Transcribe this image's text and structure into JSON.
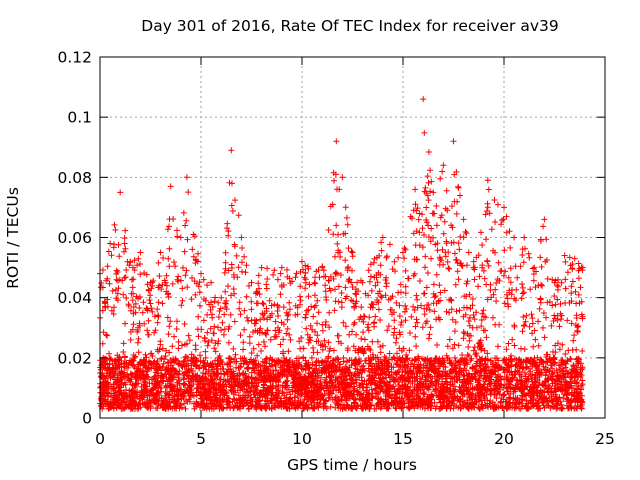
{
  "chart_data": {
    "type": "scatter",
    "title": "Day 301 of 2016, Rate Of TEC Index for receiver av39",
    "xlabel": "GPS time / hours",
    "ylabel": "ROTI / TECUs",
    "xlim": [
      0,
      25
    ],
    "ylim": [
      0,
      0.12
    ],
    "xticks": [
      0,
      5,
      10,
      15,
      20,
      25
    ],
    "yticks": [
      0,
      0.02,
      0.04,
      0.06,
      0.08,
      0.1,
      0.12
    ],
    "xtick_labels": [
      "0",
      "5",
      "10",
      "15",
      "20",
      "25"
    ],
    "ytick_labels": [
      "0",
      "0.02",
      "0.04",
      "0.06",
      "0.08",
      "0.1",
      "0.12"
    ],
    "grid": true,
    "marker": "+",
    "color": "#ff0000",
    "series": [
      {
        "name": "ROTI",
        "x_range": [
          0,
          23.9
        ],
        "baseline_range": [
          0.003,
          0.02
        ],
        "upper_envelope": [
          [
            0.0,
            0.048
          ],
          [
            0.5,
            0.058
          ],
          [
            1.0,
            0.075
          ],
          [
            1.5,
            0.052
          ],
          [
            2.0,
            0.055
          ],
          [
            2.5,
            0.045
          ],
          [
            3.0,
            0.055
          ],
          [
            3.5,
            0.077
          ],
          [
            4.0,
            0.06
          ],
          [
            4.3,
            0.08
          ],
          [
            5.0,
            0.048
          ],
          [
            5.5,
            0.045
          ],
          [
            6.0,
            0.04
          ],
          [
            6.5,
            0.089
          ],
          [
            7.0,
            0.06
          ],
          [
            7.5,
            0.045
          ],
          [
            8.0,
            0.05
          ],
          [
            9.0,
            0.05
          ],
          [
            10.0,
            0.052
          ],
          [
            11.0,
            0.05
          ],
          [
            11.7,
            0.092
          ],
          [
            12.0,
            0.08
          ],
          [
            12.5,
            0.055
          ],
          [
            13.0,
            0.045
          ],
          [
            14.0,
            0.06
          ],
          [
            15.0,
            0.055
          ],
          [
            15.6,
            0.076
          ],
          [
            16.0,
            0.106
          ],
          [
            16.5,
            0.075
          ],
          [
            17.0,
            0.084
          ],
          [
            17.5,
            0.092
          ],
          [
            18.0,
            0.066
          ],
          [
            18.5,
            0.052
          ],
          [
            19.2,
            0.079
          ],
          [
            20.0,
            0.07
          ],
          [
            20.5,
            0.06
          ],
          [
            21.0,
            0.06
          ],
          [
            21.5,
            0.05
          ],
          [
            22.0,
            0.066
          ],
          [
            22.5,
            0.045
          ],
          [
            23.0,
            0.054
          ],
          [
            23.5,
            0.053
          ],
          [
            23.9,
            0.05
          ]
        ]
      }
    ]
  }
}
